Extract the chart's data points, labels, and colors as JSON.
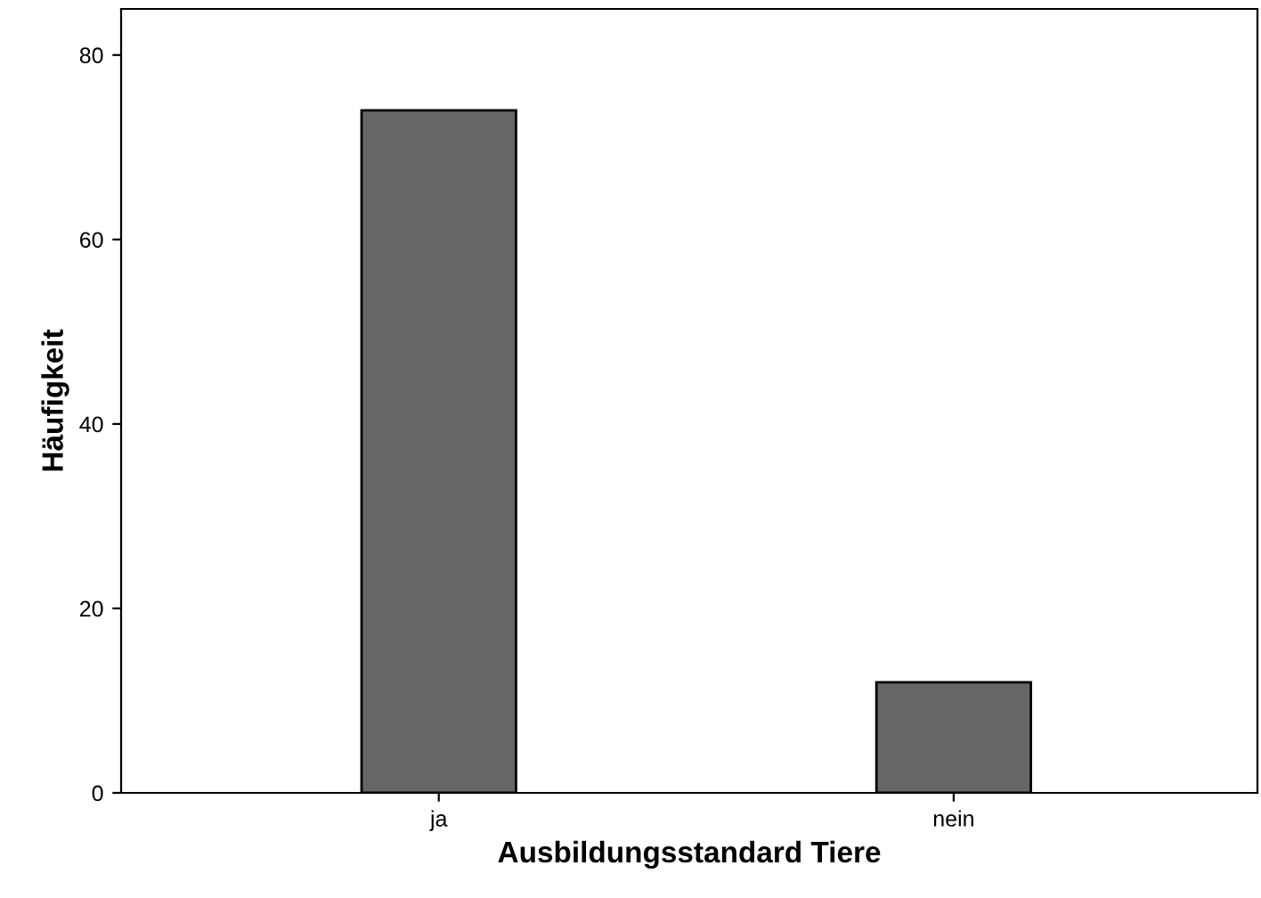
{
  "chart_data": {
    "type": "bar",
    "xlabel": "Ausbildungsstandard Tiere",
    "ylabel": "Häufigkeit",
    "categories": [
      "ja",
      "nein"
    ],
    "values": [
      74,
      12
    ],
    "color": "#666666",
    "ylim": [
      0,
      85
    ],
    "yticks": [
      0,
      20,
      40,
      60,
      80
    ],
    "grid": false
  }
}
